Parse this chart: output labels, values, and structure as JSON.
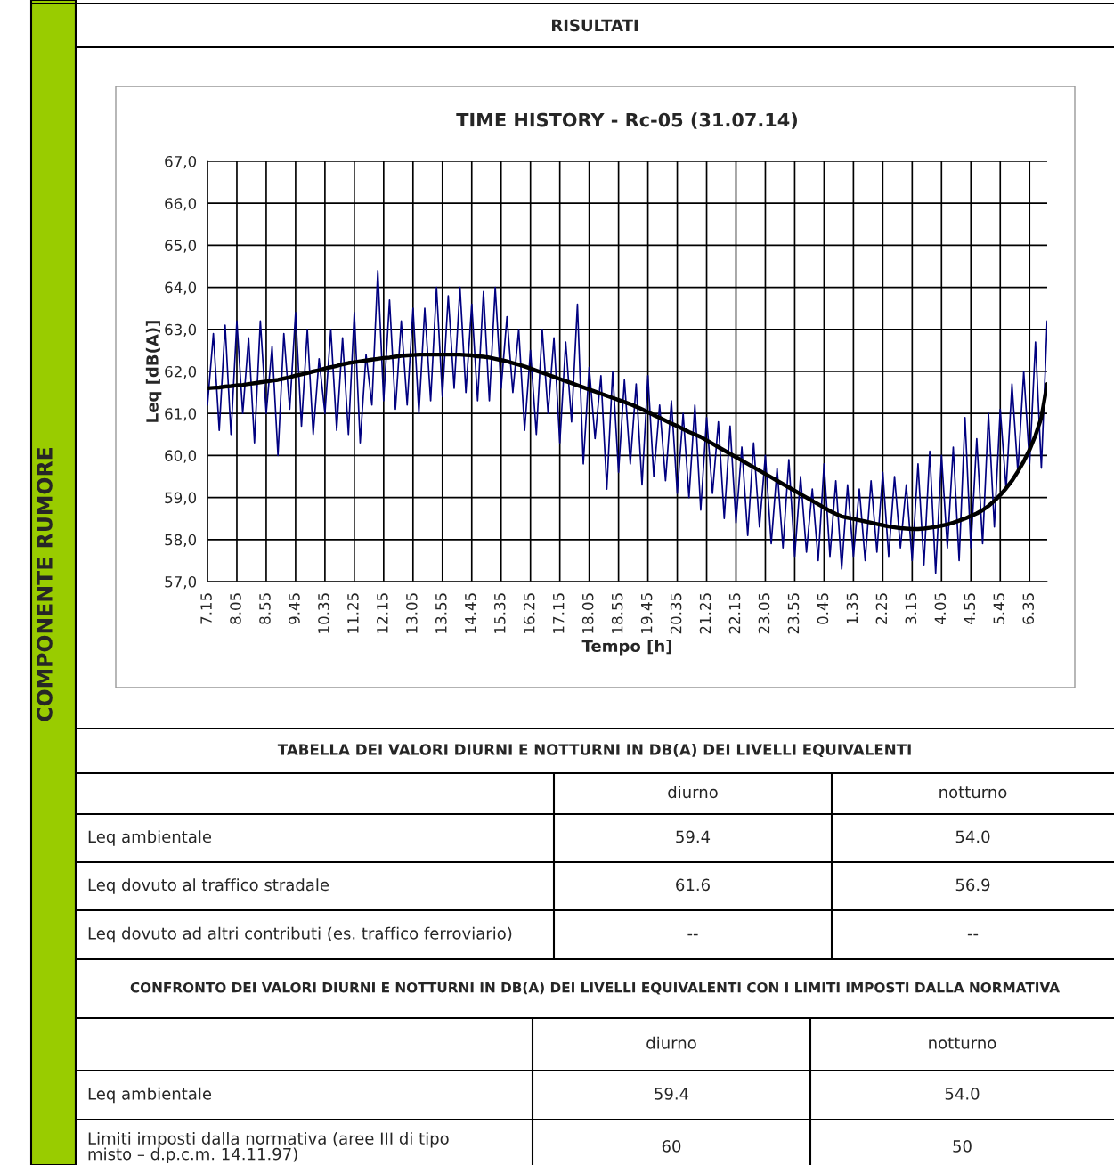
{
  "chart_data": {
    "type": "line",
    "title": "TIME HISTORY - Rc-05 (31.07.14)",
    "xlabel": "Tempo [h]",
    "ylabel": "Leq [dB(A)]",
    "categories": [
      "7.15",
      null,
      null,
      null,
      null,
      "8.05",
      null,
      null,
      null,
      null,
      "8.55",
      null,
      null,
      null,
      null,
      "9.45",
      null,
      null,
      null,
      null,
      "10.35",
      null,
      null,
      null,
      null,
      "11.25",
      null,
      null,
      null,
      null,
      "12.15",
      null,
      null,
      null,
      null,
      "13.05",
      null,
      null,
      null,
      null,
      "13.55",
      null,
      null,
      null,
      null,
      "14.45",
      null,
      null,
      null,
      null,
      "15.35",
      null,
      null,
      null,
      null,
      "16.25",
      null,
      null,
      null,
      null,
      "17.15",
      null,
      null,
      null,
      null,
      "18.05",
      null,
      null,
      null,
      null,
      "18.55",
      null,
      null,
      null,
      null,
      "19.45",
      null,
      null,
      null,
      null,
      "20.35",
      null,
      null,
      null,
      null,
      "21.25",
      null,
      null,
      null,
      null,
      "22.15",
      null,
      null,
      null,
      null,
      "23.05",
      null,
      null,
      null,
      null,
      "23.55",
      null,
      null,
      null,
      null,
      "0.45",
      null,
      null,
      null,
      null,
      "1.35",
      null,
      null,
      null,
      null,
      "2.25",
      null,
      null,
      null,
      null,
      "3.15",
      null,
      null,
      null,
      null,
      "4.05",
      null,
      null,
      null,
      null,
      "4.55",
      null,
      null,
      null,
      null,
      "5.45",
      null,
      null,
      null,
      null,
      "6.35",
      null,
      null,
      null
    ],
    "ylim": [
      57,
      67
    ],
    "yticks": [
      {
        "value": 57,
        "label": "57,0"
      },
      {
        "value": 58,
        "label": "58,0"
      },
      {
        "value": 59,
        "label": "59,0"
      },
      {
        "value": 60,
        "label": "60,0"
      },
      {
        "value": 61,
        "label": "61,0"
      },
      {
        "value": 62,
        "label": "62,0"
      },
      {
        "value": 63,
        "label": "63,0"
      },
      {
        "value": 64,
        "label": "64,0"
      },
      {
        "value": 65,
        "label": "65,0"
      },
      {
        "value": 66,
        "label": "66,0"
      },
      {
        "value": 67,
        "label": "67,0"
      }
    ],
    "grid": true,
    "marker": "none",
    "line_style": "solid",
    "series": [
      {
        "color": "#000080",
        "values": [
          61.2,
          62.9,
          60.6,
          63.1,
          60.5,
          63.2,
          61.0,
          62.8,
          60.3,
          63.2,
          61.0,
          62.6,
          60.0,
          62.9,
          61.1,
          63.4,
          60.7,
          63.0,
          60.5,
          62.3,
          61.0,
          63.0,
          60.6,
          62.8,
          60.5,
          63.4,
          60.3,
          62.4,
          61.2,
          64.4,
          61.3,
          63.7,
          61.1,
          63.2,
          61.2,
          63.5,
          61.0,
          63.5,
          61.3,
          64.0,
          61.4,
          63.8,
          61.6,
          64.0,
          61.5,
          63.6,
          61.3,
          63.9,
          61.3,
          64.0,
          61.6,
          63.3,
          61.5,
          63.0,
          60.6,
          62.5,
          60.5,
          63.0,
          61.0,
          62.8,
          60.3,
          62.7,
          60.8,
          63.6,
          59.8,
          62.1,
          60.4,
          61.9,
          59.2,
          62.0,
          59.6,
          61.8,
          59.8,
          61.7,
          59.3,
          61.9,
          59.5,
          61.2,
          59.4,
          61.3,
          59.1,
          61.0,
          59.0,
          61.2,
          58.7,
          60.9,
          59.1,
          60.8,
          58.5,
          60.7,
          58.4,
          60.2,
          58.1,
          60.3,
          58.3,
          60.0,
          57.9,
          59.7,
          57.8,
          59.9,
          57.6,
          59.5,
          57.7,
          59.2,
          57.5,
          59.8,
          57.6,
          59.4,
          57.3,
          59.3,
          57.6,
          59.2,
          57.5,
          59.4,
          57.7,
          59.6,
          57.6,
          59.5,
          57.8,
          59.3,
          57.5,
          59.8,
          57.4,
          60.1,
          57.2,
          60.0,
          57.8,
          60.2,
          57.5,
          60.9,
          57.8,
          60.4,
          57.9,
          61.0,
          58.3,
          61.1,
          59.2,
          61.7,
          59.6,
          62.0,
          59.8,
          62.7,
          59.7,
          63.2
        ]
      },
      {
        "color": "#000000",
        "values": [
          61.6,
          61.61,
          61.62,
          61.64,
          61.65,
          61.67,
          61.68,
          61.7,
          61.72,
          61.74,
          61.76,
          61.78,
          61.8,
          61.83,
          61.86,
          61.9,
          61.93,
          61.96,
          62.0,
          62.03,
          62.07,
          62.1,
          62.13,
          62.17,
          62.2,
          62.22,
          62.24,
          62.26,
          62.28,
          62.3,
          62.32,
          62.33,
          62.35,
          62.37,
          62.38,
          62.39,
          62.4,
          62.4,
          62.4,
          62.4,
          62.4,
          62.4,
          62.4,
          62.4,
          62.39,
          62.38,
          62.36,
          62.35,
          62.33,
          62.3,
          62.27,
          62.24,
          62.2,
          62.16,
          62.12,
          62.07,
          62.02,
          61.97,
          61.92,
          61.87,
          61.82,
          61.77,
          61.72,
          61.67,
          61.62,
          61.57,
          61.52,
          61.47,
          61.42,
          61.37,
          61.32,
          61.27,
          61.22,
          61.16,
          61.1,
          61.03,
          60.96,
          60.9,
          60.83,
          60.76,
          60.7,
          60.63,
          60.56,
          60.5,
          60.44,
          60.36,
          60.28,
          60.2,
          60.12,
          60.04,
          59.96,
          59.88,
          59.8,
          59.72,
          59.64,
          59.56,
          59.48,
          59.4,
          59.32,
          59.24,
          59.16,
          59.08,
          59.0,
          58.92,
          58.84,
          58.76,
          58.68,
          58.61,
          58.55,
          58.52,
          58.49,
          58.46,
          58.43,
          58.4,
          58.37,
          58.34,
          58.31,
          58.29,
          58.27,
          58.26,
          58.25,
          58.25,
          58.26,
          58.28,
          58.3,
          58.33,
          58.36,
          58.4,
          58.45,
          58.5,
          58.56,
          58.62,
          58.7,
          58.8,
          58.92,
          59.06,
          59.22,
          59.4,
          59.62,
          59.86,
          60.14,
          60.48,
          60.9,
          61.7
        ]
      }
    ],
    "annotations": [
      "COMPONENTE RUMORE",
      "RISULTATI",
      "TABELLA DEI VALORI DIURNI E NOTTURNI IN DB(A) DEI LIVELLI EQUIVALENTI",
      "diurno",
      "notturno",
      "Leq ambientale",
      "59.4",
      "54.0",
      "Leq dovuto al traffico stradale",
      "61.6",
      "56.9",
      "Leq dovuto ad altri contributi (es. traffico ferroviario)",
      "--",
      "--",
      "CONFRONTO DEI VALORI DIURNI E NOTTURNI IN DB(A) DEI LIVELLI EQUIVALENTI CON I LIMITI IMPOSTI DALLA NORMATIVA",
      "diurno",
      "notturno",
      "Leq ambientale",
      "59.4",
      "54.0",
      "Limiti imposti dalla normativa (aree III di tipo\nmisto – d.p.c.m. 14.11.97)",
      "60",
      "50"
    ]
  }
}
